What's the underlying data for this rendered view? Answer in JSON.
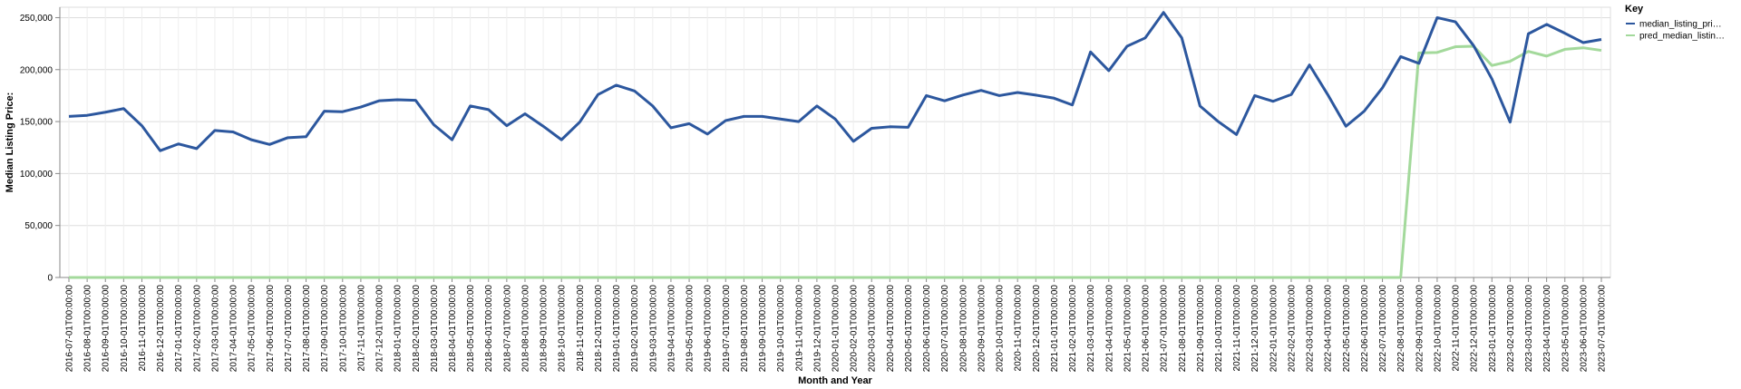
{
  "chart_data": {
    "type": "line",
    "xlabel": "Month and Year",
    "ylabel": "Median Listing Price:",
    "ylim": [
      0,
      260000
    ],
    "yticks": [
      0,
      50000,
      100000,
      150000,
      200000,
      250000
    ],
    "grid": true,
    "legend": {
      "title": "Key",
      "placement": "right"
    },
    "colors": {
      "series1": "#2c579e",
      "series2": "#a3d99b",
      "grid": "#dddddd",
      "axis": "#888888"
    },
    "x": [
      "2016-07-01T00:00:00",
      "2016-08-01T00:00:00",
      "2016-09-01T00:00:00",
      "2016-10-01T00:00:00",
      "2016-11-01T00:00:00",
      "2016-12-01T00:00:00",
      "2017-01-01T00:00:00",
      "2017-02-01T00:00:00",
      "2017-03-01T00:00:00",
      "2017-04-01T00:00:00",
      "2017-05-01T00:00:00",
      "2017-06-01T00:00:00",
      "2017-07-01T00:00:00",
      "2017-08-01T00:00:00",
      "2017-09-01T00:00:00",
      "2017-10-01T00:00:00",
      "2017-11-01T00:00:00",
      "2017-12-01T00:00:00",
      "2018-01-01T00:00:00",
      "2018-02-01T00:00:00",
      "2018-03-01T00:00:00",
      "2018-04-01T00:00:00",
      "2018-05-01T00:00:00",
      "2018-06-01T00:00:00",
      "2018-07-01T00:00:00",
      "2018-08-01T00:00:00",
      "2018-09-01T00:00:00",
      "2018-10-01T00:00:00",
      "2018-11-01T00:00:00",
      "2018-12-01T00:00:00",
      "2019-01-01T00:00:00",
      "2019-02-01T00:00:00",
      "2019-03-01T00:00:00",
      "2019-04-01T00:00:00",
      "2019-05-01T00:00:00",
      "2019-06-01T00:00:00",
      "2019-07-01T00:00:00",
      "2019-08-01T00:00:00",
      "2019-09-01T00:00:00",
      "2019-10-01T00:00:00",
      "2019-11-01T00:00:00",
      "2019-12-01T00:00:00",
      "2020-01-01T00:00:00",
      "2020-02-01T00:00:00",
      "2020-03-01T00:00:00",
      "2020-04-01T00:00:00",
      "2020-05-01T00:00:00",
      "2020-06-01T00:00:00",
      "2020-07-01T00:00:00",
      "2020-08-01T00:00:00",
      "2020-09-01T00:00:00",
      "2020-10-01T00:00:00",
      "2020-11-01T00:00:00",
      "2020-12-01T00:00:00",
      "2021-01-01T00:00:00",
      "2021-02-01T00:00:00",
      "2021-03-01T00:00:00",
      "2021-04-01T00:00:00",
      "2021-05-01T00:00:00",
      "2021-06-01T00:00:00",
      "2021-07-01T00:00:00",
      "2021-08-01T00:00:00",
      "2021-09-01T00:00:00",
      "2021-10-01T00:00:00",
      "2021-11-01T00:00:00",
      "2021-12-01T00:00:00",
      "2022-01-01T00:00:00",
      "2022-02-01T00:00:00",
      "2022-03-01T00:00:00",
      "2022-04-01T00:00:00",
      "2022-05-01T00:00:00",
      "2022-06-01T00:00:00",
      "2022-07-01T00:00:00",
      "2022-08-01T00:00:00",
      "2022-09-01T00:00:00",
      "2022-10-01T00:00:00",
      "2022-11-01T00:00:00",
      "2022-12-01T00:00:00",
      "2023-01-01T00:00:00",
      "2023-02-01T00:00:00",
      "2023-03-01T00:00:00",
      "2023-04-01T00:00:00",
      "2023-05-01T00:00:00",
      "2023-06-01T00:00:00",
      "2023-07-01T00:00:00"
    ],
    "series": [
      {
        "name": "median_listing_pri…",
        "values": [
          155000,
          156000,
          159000,
          162500,
          146000,
          122000,
          128500,
          124000,
          141500,
          140000,
          132500,
          128000,
          134500,
          135500,
          160000,
          159500,
          164000,
          170000,
          171000,
          170500,
          147000,
          132500,
          165000,
          161500,
          146000,
          157500,
          145500,
          132500,
          149500,
          176000,
          185000,
          179500,
          165000,
          144000,
          148000,
          138000,
          151000,
          155000,
          155000,
          152500,
          150000,
          165000,
          152500,
          131000,
          143500,
          145000,
          144500,
          175000,
          170000,
          175500,
          180000,
          175000,
          178000,
          175500,
          172500,
          166000,
          217000,
          199000,
          222500,
          230500,
          255000,
          230500,
          165000,
          150000,
          137500,
          175000,
          169500,
          176000,
          204500,
          176000,
          145500,
          160000,
          182500,
          212500,
          206000,
          250000,
          246000,
          223000,
          191000,
          149500,
          234500,
          243500,
          235000,
          226000,
          229000
        ]
      },
      {
        "name": "pred_median_listin…",
        "values": [
          0,
          0,
          0,
          0,
          0,
          0,
          0,
          0,
          0,
          0,
          0,
          0,
          0,
          0,
          0,
          0,
          0,
          0,
          0,
          0,
          0,
          0,
          0,
          0,
          0,
          0,
          0,
          0,
          0,
          0,
          0,
          0,
          0,
          0,
          0,
          0,
          0,
          0,
          0,
          0,
          0,
          0,
          0,
          0,
          0,
          0,
          0,
          0,
          0,
          0,
          0,
          0,
          0,
          0,
          0,
          0,
          0,
          0,
          0,
          0,
          0,
          0,
          0,
          0,
          0,
          0,
          0,
          0,
          0,
          0,
          0,
          0,
          0,
          0,
          216000,
          216500,
          222000,
          222500,
          204000,
          208000,
          217500,
          213000,
          219500,
          221000,
          218500
        ]
      }
    ]
  },
  "y_tick_labels": [
    "0",
    "50,000",
    "100,000",
    "150,000",
    "200,000",
    "250,000"
  ]
}
